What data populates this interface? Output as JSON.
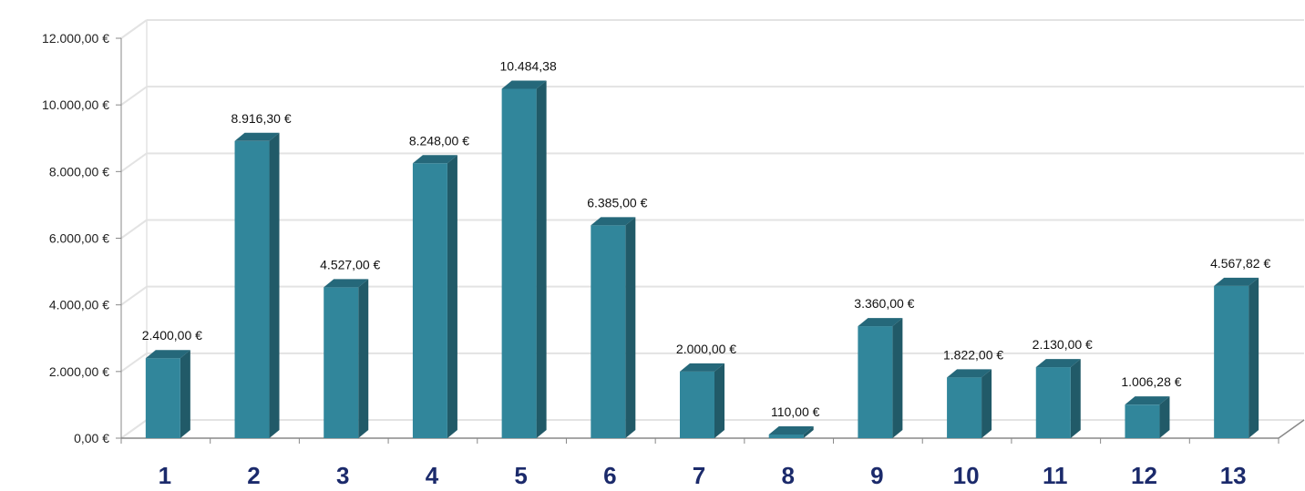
{
  "chart_data": {
    "type": "bar",
    "title": "",
    "xlabel": "",
    "ylabel": "",
    "ylim": [
      0,
      12000
    ],
    "grid": true,
    "legend": "none",
    "categories": [
      "1",
      "2",
      "3",
      "4",
      "5",
      "6",
      "7",
      "8",
      "9",
      "10",
      "11",
      "12",
      "13"
    ],
    "values": [
      2400,
      8916.3,
      4527,
      8248,
      10484.38,
      6385,
      2000,
      110,
      3360,
      1822,
      2130,
      1006.28,
      4567.82
    ],
    "value_labels": [
      "2.400,00 €",
      "8.916,30 €",
      "4.527,00 €",
      "8.248,00 €",
      "10.484,38",
      "6.385,00 €",
      "2.000,00 €",
      "110,00 €",
      "3.360,00 €",
      "1.822,00 €",
      "2.130,00 €",
      "1.006,28 €",
      "4.567,82 €"
    ],
    "yticks": [
      0,
      2000,
      4000,
      6000,
      8000,
      10000,
      12000
    ],
    "ytick_labels": [
      "0,00 €",
      "2.000,00 €",
      "4.000,00 €",
      "6.000,00 €",
      "8.000,00 €",
      "10.000,00 €",
      "12.000,00 €"
    ],
    "colors": {
      "bar_front": "#31869b",
      "bar_side": "#215a68",
      "bar_top": "#25687a",
      "grid": "#e3e3e3",
      "axis": "#888888",
      "xtick_text": "#1b2a6b"
    }
  }
}
